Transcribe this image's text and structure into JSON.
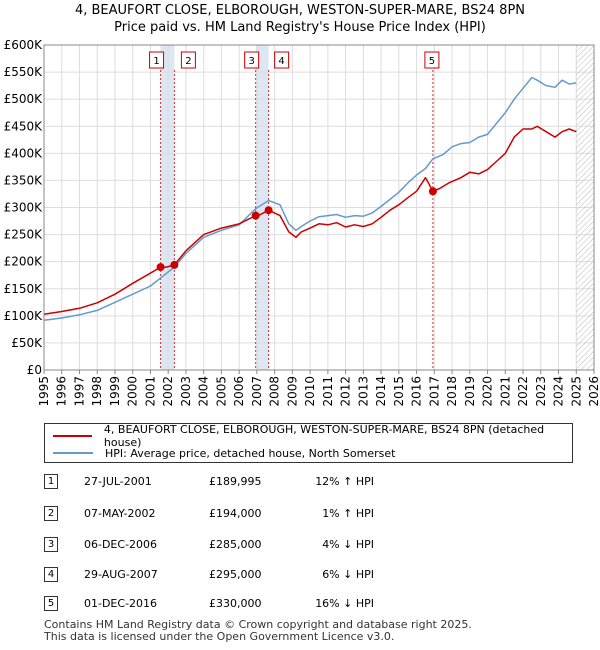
{
  "title_line1": "4, BEAUFORT CLOSE, ELBOROUGH, WESTON-SUPER-MARE, BS24 8PN",
  "title_line2": "Price paid vs. HM Land Registry's House Price Index (HPI)",
  "colors": {
    "property": "#cc0000",
    "hpi": "#6699cc",
    "marker_line": "#cc3333",
    "grid": "#dddddd",
    "band": "#dde6f3"
  },
  "chart_data": {
    "type": "line",
    "x_range": [
      1995,
      2026
    ],
    "ylim": [
      0,
      600000
    ],
    "y_ticks": [
      {
        "value": 0,
        "label": "£0"
      },
      {
        "value": 50000,
        "label": "£50K"
      },
      {
        "value": 100000,
        "label": "£100K"
      },
      {
        "value": 150000,
        "label": "£150K"
      },
      {
        "value": 200000,
        "label": "£200K"
      },
      {
        "value": 250000,
        "label": "£250K"
      },
      {
        "value": 300000,
        "label": "£300K"
      },
      {
        "value": 350000,
        "label": "£350K"
      },
      {
        "value": 400000,
        "label": "£400K"
      },
      {
        "value": 450000,
        "label": "£450K"
      },
      {
        "value": 500000,
        "label": "£500K"
      },
      {
        "value": 550000,
        "label": "£550K"
      },
      {
        "value": 600000,
        "label": "£600K"
      }
    ],
    "x_ticks": [
      "1995",
      "1996",
      "1997",
      "1998",
      "1999",
      "2000",
      "2001",
      "2002",
      "2003",
      "2004",
      "2005",
      "2006",
      "2007",
      "2008",
      "2009",
      "2010",
      "2011",
      "2012",
      "2013",
      "2014",
      "2015",
      "2016",
      "2017",
      "2018",
      "2019",
      "2020",
      "2021",
      "2022",
      "2023",
      "2024",
      "2025",
      "2026"
    ],
    "grid": true,
    "hatched_after": 2025.0,
    "series": [
      {
        "name": "4, BEAUFORT CLOSE, ELBOROUGH, WESTON-SUPER-MARE, BS24 8PN (detached house)",
        "x": [
          1995.0,
          1996.0,
          1997.0,
          1998.0,
          1999.0,
          2000.0,
          2000.8,
          2001.57,
          2001.9,
          2002.35,
          2003.0,
          2004.0,
          2005.0,
          2006.0,
          2006.93,
          2007.2,
          2007.66,
          2008.3,
          2008.8,
          2009.2,
          2009.5,
          2010.0,
          2010.5,
          2011.0,
          2011.5,
          2012.0,
          2012.5,
          2013.0,
          2013.5,
          2014.0,
          2014.5,
          2015.0,
          2015.5,
          2016.0,
          2016.5,
          2016.92,
          2017.3,
          2017.8,
          2018.5,
          2019.0,
          2019.5,
          2020.0,
          2020.5,
          2021.0,
          2021.5,
          2022.0,
          2022.5,
          2022.8,
          2023.3,
          2023.8,
          2024.2,
          2024.6,
          2025.0
        ],
        "y": [
          103000,
          108000,
          114000,
          124000,
          140000,
          160000,
          175000,
          189995,
          190000,
          194000,
          220000,
          250000,
          262000,
          270000,
          285000,
          287000,
          295000,
          285000,
          255000,
          245000,
          255000,
          262000,
          270000,
          268000,
          272000,
          264000,
          268000,
          265000,
          270000,
          282000,
          295000,
          305000,
          318000,
          330000,
          355000,
          330000,
          335000,
          345000,
          355000,
          365000,
          362000,
          370000,
          385000,
          400000,
          430000,
          445000,
          445000,
          450000,
          440000,
          430000,
          440000,
          445000,
          440000
        ]
      },
      {
        "name": "HPI: Average price, detached house, North Somerset",
        "x": [
          1995.0,
          1996.0,
          1997.0,
          1998.0,
          1999.0,
          2000.0,
          2001.0,
          2001.57,
          2002.35,
          2003.0,
          2004.0,
          2005.0,
          2006.0,
          2006.93,
          2007.66,
          2008.3,
          2008.8,
          2009.2,
          2009.5,
          2010.0,
          2010.5,
          2011.0,
          2011.5,
          2012.0,
          2012.5,
          2013.0,
          2013.5,
          2014.0,
          2014.5,
          2015.0,
          2015.5,
          2016.0,
          2016.5,
          2016.92,
          2017.5,
          2018.0,
          2018.5,
          2019.0,
          2019.5,
          2020.0,
          2020.5,
          2021.0,
          2021.5,
          2022.0,
          2022.5,
          2022.8,
          2023.3,
          2023.8,
          2024.2,
          2024.6,
          2025.0
        ],
        "y": [
          92000,
          96000,
          102000,
          110000,
          125000,
          140000,
          155000,
          170000,
          190000,
          215000,
          245000,
          258000,
          268000,
          298000,
          313000,
          305000,
          270000,
          258000,
          265000,
          275000,
          283000,
          285000,
          287000,
          282000,
          285000,
          284000,
          290000,
          302000,
          315000,
          328000,
          345000,
          360000,
          372000,
          390000,
          398000,
          412000,
          418000,
          420000,
          430000,
          435000,
          455000,
          475000,
          500000,
          520000,
          540000,
          535000,
          525000,
          522000,
          535000,
          528000,
          530000
        ]
      }
    ],
    "sales": [
      {
        "id": "1",
        "x": 2001.57,
        "y": 189995
      },
      {
        "id": "2",
        "x": 2002.35,
        "y": 194000
      },
      {
        "id": "3",
        "x": 2006.93,
        "y": 285000
      },
      {
        "id": "4",
        "x": 2007.66,
        "y": 295000
      },
      {
        "id": "5",
        "x": 2016.92,
        "y": 330000
      }
    ]
  },
  "legend": {
    "property_label": "4, BEAUFORT CLOSE, ELBOROUGH, WESTON-SUPER-MARE, BS24 8PN (detached house)",
    "hpi_label": "HPI: Average price, detached house, North Somerset"
  },
  "table": [
    {
      "id": "1",
      "date": "27-JUL-2001",
      "price": "£189,995",
      "hpi": "12% ↑ HPI"
    },
    {
      "id": "2",
      "date": "07-MAY-2002",
      "price": "£194,000",
      "hpi": "1% ↑ HPI"
    },
    {
      "id": "3",
      "date": "06-DEC-2006",
      "price": "£285,000",
      "hpi": "4% ↓ HPI"
    },
    {
      "id": "4",
      "date": "29-AUG-2007",
      "price": "£295,000",
      "hpi": "6% ↓ HPI"
    },
    {
      "id": "5",
      "date": "01-DEC-2016",
      "price": "£330,000",
      "hpi": "16% ↓ HPI"
    }
  ],
  "footer_line1": "Contains HM Land Registry data © Crown copyright and database right 2025.",
  "footer_line2": "This data is licensed under the Open Government Licence v3.0."
}
